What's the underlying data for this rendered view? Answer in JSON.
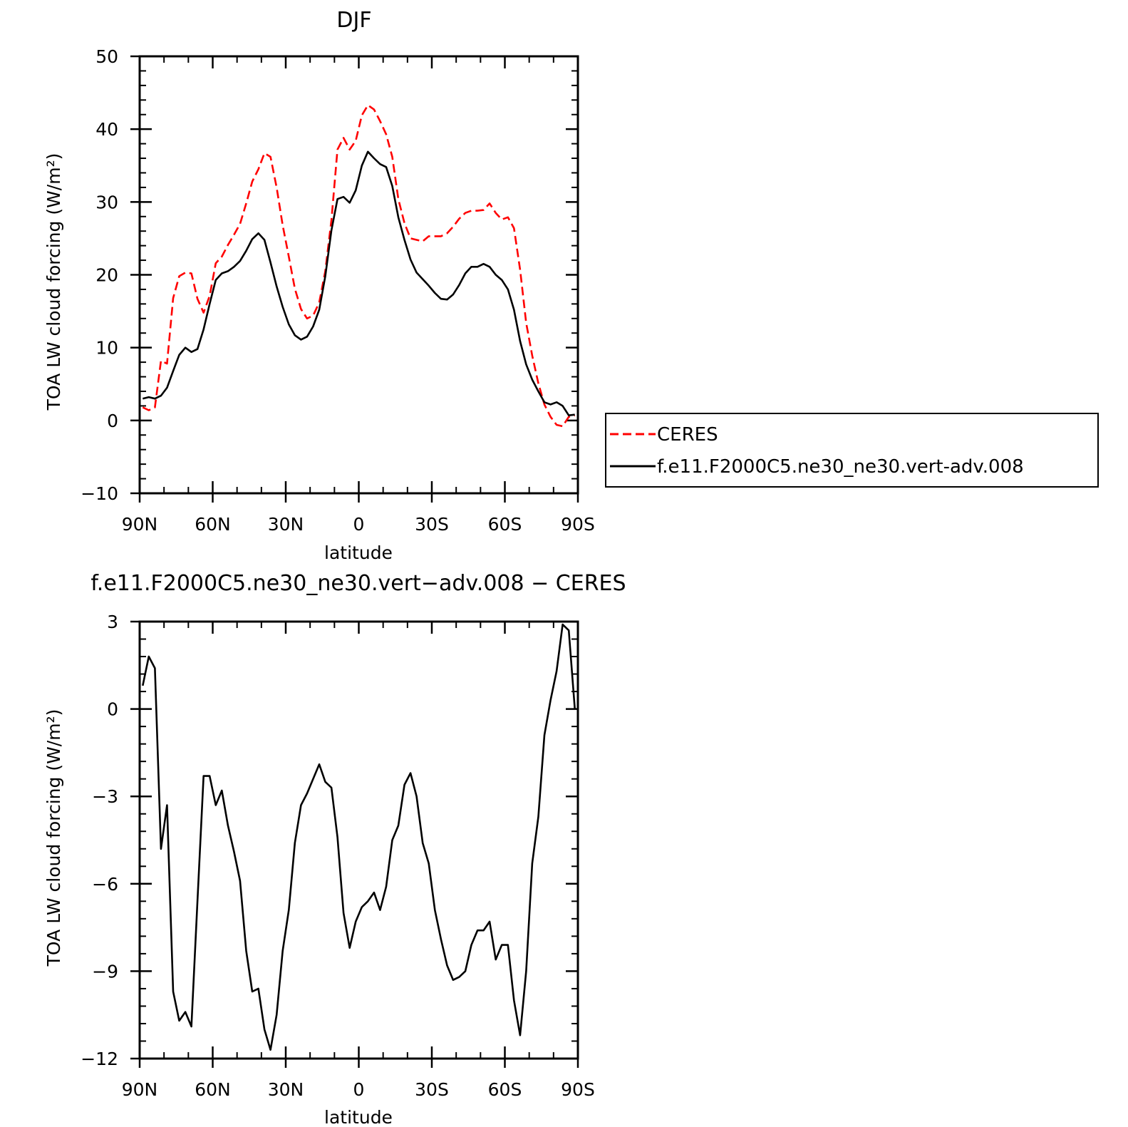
{
  "chart_data": [
    {
      "type": "line",
      "title": "DJF",
      "xlabel": "latitude",
      "ylabel": "TOA LW cloud forcing (W/m²)",
      "ylim": [
        -10,
        50
      ],
      "yticks": [
        -10,
        0,
        10,
        20,
        30,
        40,
        50
      ],
      "xlim": [
        90,
        -90
      ],
      "xticks": [
        90,
        60,
        30,
        0,
        -30,
        -60,
        -90
      ],
      "xticklabels": [
        "90N",
        "60N",
        "30N",
        "0",
        "30S",
        "60S",
        "90S"
      ],
      "grid": false,
      "legend_position": "right",
      "series": [
        {
          "name": "CERES",
          "color": "#ff0000",
          "dash": "dashed",
          "x": [
            88.75,
            86.25,
            83.75,
            81.25,
            78.75,
            76.25,
            73.75,
            71.25,
            68.75,
            66.25,
            63.75,
            61.25,
            58.75,
            56.25,
            53.75,
            51.25,
            48.75,
            46.25,
            43.75,
            41.25,
            38.75,
            36.25,
            33.75,
            31.25,
            28.75,
            26.25,
            23.75,
            21.25,
            18.75,
            16.25,
            13.75,
            11.25,
            8.75,
            6.25,
            3.75,
            1.25,
            -1.25,
            -3.75,
            -6.25,
            -8.75,
            -11.25,
            -13.75,
            -16.25,
            -18.75,
            -21.25,
            -23.75,
            -26.25,
            -28.75,
            -31.25,
            -33.75,
            -36.25,
            -38.75,
            -41.25,
            -43.75,
            -46.25,
            -48.75,
            -51.25,
            -53.75,
            -56.25,
            -58.75,
            -61.25,
            -63.75,
            -66.25,
            -68.75,
            -71.25,
            -73.75,
            -76.25,
            -78.75,
            -81.25,
            -83.75,
            -86.25,
            -88.75
          ],
          "y": [
            1.8,
            1.4,
            1.8,
            8.2,
            7.8,
            16.8,
            19.8,
            20.3,
            20.2,
            16.7,
            14.8,
            17.1,
            21.6,
            22.5,
            24.1,
            25.5,
            27.0,
            29.8,
            32.8,
            34.5,
            36.7,
            36.2,
            32.0,
            26.8,
            22.5,
            18.1,
            15.3,
            14.0,
            14.4,
            16.2,
            20.5,
            27.5,
            37.2,
            38.8,
            37.2,
            38.4,
            41.9,
            43.3,
            42.7,
            41.1,
            39.3,
            36.2,
            30.4,
            27.1,
            25.0,
            24.8,
            24.6,
            25.3,
            25.3,
            25.3,
            25.7,
            26.6,
            27.7,
            28.5,
            28.8,
            28.8,
            28.9,
            29.8,
            28.5,
            27.6,
            27.9,
            26.4,
            20.7,
            13.4,
            8.9,
            5.1,
            2.2,
            0.5,
            -0.6,
            -0.8,
            0.5,
            0.7
          ]
        },
        {
          "name": "f.e11.F2000C5.ne30_ne30.vert-adv.008",
          "color": "#000000",
          "dash": "solid",
          "x": [
            88.75,
            86.25,
            83.75,
            81.25,
            78.75,
            76.25,
            73.75,
            71.25,
            68.75,
            66.25,
            63.75,
            61.25,
            58.75,
            56.25,
            53.75,
            51.25,
            48.75,
            46.25,
            43.75,
            41.25,
            38.75,
            36.25,
            33.75,
            31.25,
            28.75,
            26.25,
            23.75,
            21.25,
            18.75,
            16.25,
            13.75,
            11.25,
            8.75,
            6.25,
            3.75,
            1.25,
            -1.25,
            -3.75,
            -6.25,
            -8.75,
            -11.25,
            -13.75,
            -16.25,
            -18.75,
            -21.25,
            -23.75,
            -26.25,
            -28.75,
            -31.25,
            -33.75,
            -36.25,
            -38.75,
            -41.25,
            -43.75,
            -46.25,
            -48.75,
            -51.25,
            -53.75,
            -56.25,
            -58.75,
            -61.25,
            -63.75,
            -66.25,
            -68.75,
            -71.25,
            -73.75,
            -76.25,
            -78.75,
            -81.25,
            -83.75,
            -86.25,
            -88.75
          ],
          "y": [
            3.0,
            3.2,
            3.0,
            3.4,
            4.5,
            6.8,
            9.0,
            10.0,
            9.4,
            9.8,
            12.5,
            16.0,
            19.3,
            20.2,
            20.5,
            21.1,
            21.9,
            23.3,
            24.9,
            25.7,
            24.8,
            21.7,
            18.4,
            15.6,
            13.2,
            11.7,
            11.1,
            11.5,
            12.9,
            15.2,
            19.8,
            26.1,
            30.4,
            30.7,
            29.9,
            31.6,
            35.0,
            36.9,
            36.0,
            35.2,
            34.8,
            32.2,
            27.9,
            24.8,
            22.1,
            20.3,
            19.4,
            18.5,
            17.5,
            16.7,
            16.6,
            17.3,
            18.6,
            20.2,
            21.1,
            21.1,
            21.5,
            21.1,
            20.0,
            19.3,
            18.0,
            15.2,
            10.9,
            7.7,
            5.6,
            4.0,
            2.5,
            2.2,
            2.5,
            2.0,
            0.7,
            0.8
          ]
        }
      ]
    },
    {
      "type": "line",
      "title": "f.e11.F2000C5.ne30_ne30.vert−adv.008 − CERES",
      "xlabel": "latitude",
      "ylabel": "TOA LW cloud forcing (W/m²)",
      "ylim": [
        -12,
        3
      ],
      "yticks": [
        -12,
        -9,
        -6,
        -3,
        0,
        3
      ],
      "xlim": [
        90,
        -90
      ],
      "xticks": [
        90,
        60,
        30,
        0,
        -30,
        -60,
        -90
      ],
      "xticklabels": [
        "90N",
        "60N",
        "30N",
        "0",
        "30S",
        "60S",
        "90S"
      ],
      "grid": false,
      "series": [
        {
          "color": "#000000",
          "dash": "solid",
          "x": [
            88.75,
            86.25,
            83.75,
            81.25,
            78.75,
            76.25,
            73.75,
            71.25,
            68.75,
            66.25,
            63.75,
            61.25,
            58.75,
            56.25,
            53.75,
            51.25,
            48.75,
            46.25,
            43.75,
            41.25,
            38.75,
            36.25,
            33.75,
            31.25,
            28.75,
            26.25,
            23.75,
            21.25,
            18.75,
            16.25,
            13.75,
            11.25,
            8.75,
            6.25,
            3.75,
            1.25,
            -1.25,
            -3.75,
            -6.25,
            -8.75,
            -11.25,
            -13.75,
            -16.25,
            -18.75,
            -21.25,
            -23.75,
            -26.25,
            -28.75,
            -31.25,
            -33.75,
            -36.25,
            -38.75,
            -41.25,
            -43.75,
            -46.25,
            -48.75,
            -51.25,
            -53.75,
            -56.25,
            -58.75,
            -61.25,
            -63.75,
            -66.25,
            -68.75,
            -71.25,
            -73.75,
            -76.25,
            -78.75,
            -81.25,
            -83.75,
            -86.25,
            -88.75
          ],
          "y": [
            0.8,
            1.8,
            1.4,
            -4.8,
            -3.3,
            -9.7,
            -10.7,
            -10.4,
            -10.9,
            -6.6,
            -2.3,
            -2.3,
            -3.3,
            -2.8,
            -4.0,
            -4.9,
            -5.9,
            -8.3,
            -9.7,
            -9.6,
            -11.0,
            -11.7,
            -10.5,
            -8.3,
            -6.9,
            -4.6,
            -3.3,
            -2.9,
            -2.4,
            -1.9,
            -2.5,
            -2.7,
            -4.4,
            -7.0,
            -8.2,
            -7.3,
            -6.8,
            -6.6,
            -6.3,
            -6.9,
            -6.1,
            -4.5,
            -4.0,
            -2.6,
            -2.2,
            -3.0,
            -4.6,
            -5.3,
            -6.9,
            -7.9,
            -8.8,
            -9.3,
            -9.2,
            -9.0,
            -8.1,
            -7.6,
            -7.6,
            -7.3,
            -8.6,
            -8.1,
            -8.1,
            -10.0,
            -11.2,
            -9.0,
            -5.3,
            -3.7,
            -0.9,
            0.3,
            1.3,
            2.9,
            2.7,
            0.0
          ]
        }
      ]
    }
  ]
}
